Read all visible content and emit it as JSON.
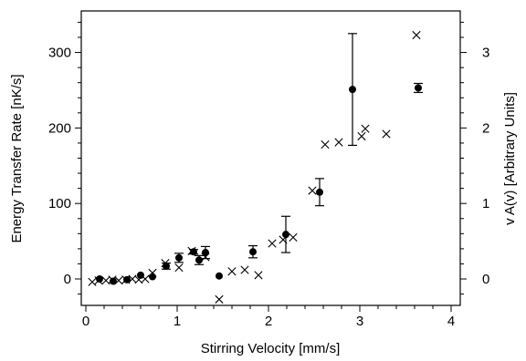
{
  "chart_data": {
    "type": "scatter",
    "xlabel": "Stirring Velocity [mm/s]",
    "ylabel": "Energy Transfer Rate [nK/s]",
    "y2label": "v A(v) [Arbitrary Units]",
    "xlim": [
      -0.05,
      4.1
    ],
    "ylim": [
      -35,
      355
    ],
    "y2lim": [
      -0.35,
      3.55
    ],
    "xticks": [
      "0",
      "1",
      "2",
      "3",
      "4"
    ],
    "yticks": [
      "0",
      "100",
      "200",
      "300"
    ],
    "y2ticks": [
      "0",
      "1",
      "2",
      "3"
    ],
    "series": [
      {
        "marker": "filled-circle",
        "axis": "left",
        "points": [
          {
            "x": 0.15,
            "y": 0,
            "err": 0
          },
          {
            "x": 0.3,
            "y": -3,
            "err": 0
          },
          {
            "x": 0.45,
            "y": -1,
            "err": 0
          },
          {
            "x": 0.6,
            "y": 5,
            "err": 0
          },
          {
            "x": 0.73,
            "y": 3,
            "err": 0
          },
          {
            "x": 0.88,
            "y": 17,
            "err": 4
          },
          {
            "x": 1.02,
            "y": 28,
            "err": 6
          },
          {
            "x": 1.18,
            "y": 36,
            "err": 3
          },
          {
            "x": 1.24,
            "y": 25,
            "err": 6
          },
          {
            "x": 1.31,
            "y": 35,
            "err": 8
          },
          {
            "x": 1.46,
            "y": 4,
            "err": 0
          },
          {
            "x": 1.83,
            "y": 36,
            "err": 8
          },
          {
            "x": 2.19,
            "y": 59,
            "err": 24
          },
          {
            "x": 2.56,
            "y": 115,
            "err": 18
          },
          {
            "x": 2.92,
            "y": 251,
            "err": 74
          },
          {
            "x": 3.64,
            "y": 253,
            "err": 6
          }
        ]
      },
      {
        "marker": "cross",
        "axis": "right",
        "points": [
          {
            "x": 0.07,
            "y": -0.04
          },
          {
            "x": 0.14,
            "y": -0.02
          },
          {
            "x": 0.22,
            "y": -0.02
          },
          {
            "x": 0.29,
            "y": -0.01
          },
          {
            "x": 0.36,
            "y": -0.02
          },
          {
            "x": 0.44,
            "y": -0.01
          },
          {
            "x": 0.51,
            "y": 0.0
          },
          {
            "x": 0.58,
            "y": -0.01
          },
          {
            "x": 0.65,
            "y": 0.0
          },
          {
            "x": 0.73,
            "y": 0.08
          },
          {
            "x": 0.87,
            "y": 0.21
          },
          {
            "x": 1.02,
            "y": 0.15
          },
          {
            "x": 1.16,
            "y": 0.37
          },
          {
            "x": 1.31,
            "y": 0.29
          },
          {
            "x": 1.46,
            "y": -0.27
          },
          {
            "x": 1.6,
            "y": 0.1
          },
          {
            "x": 1.74,
            "y": 0.12
          },
          {
            "x": 1.89,
            "y": 0.05
          },
          {
            "x": 2.04,
            "y": 0.47
          },
          {
            "x": 2.16,
            "y": 0.52
          },
          {
            "x": 2.27,
            "y": 0.55
          },
          {
            "x": 2.48,
            "y": 1.17
          },
          {
            "x": 2.62,
            "y": 1.78
          },
          {
            "x": 2.77,
            "y": 1.81
          },
          {
            "x": 3.02,
            "y": 1.89
          },
          {
            "x": 3.06,
            "y": 1.99
          },
          {
            "x": 3.29,
            "y": 1.92
          },
          {
            "x": 3.62,
            "y": 3.23
          }
        ]
      }
    ]
  }
}
